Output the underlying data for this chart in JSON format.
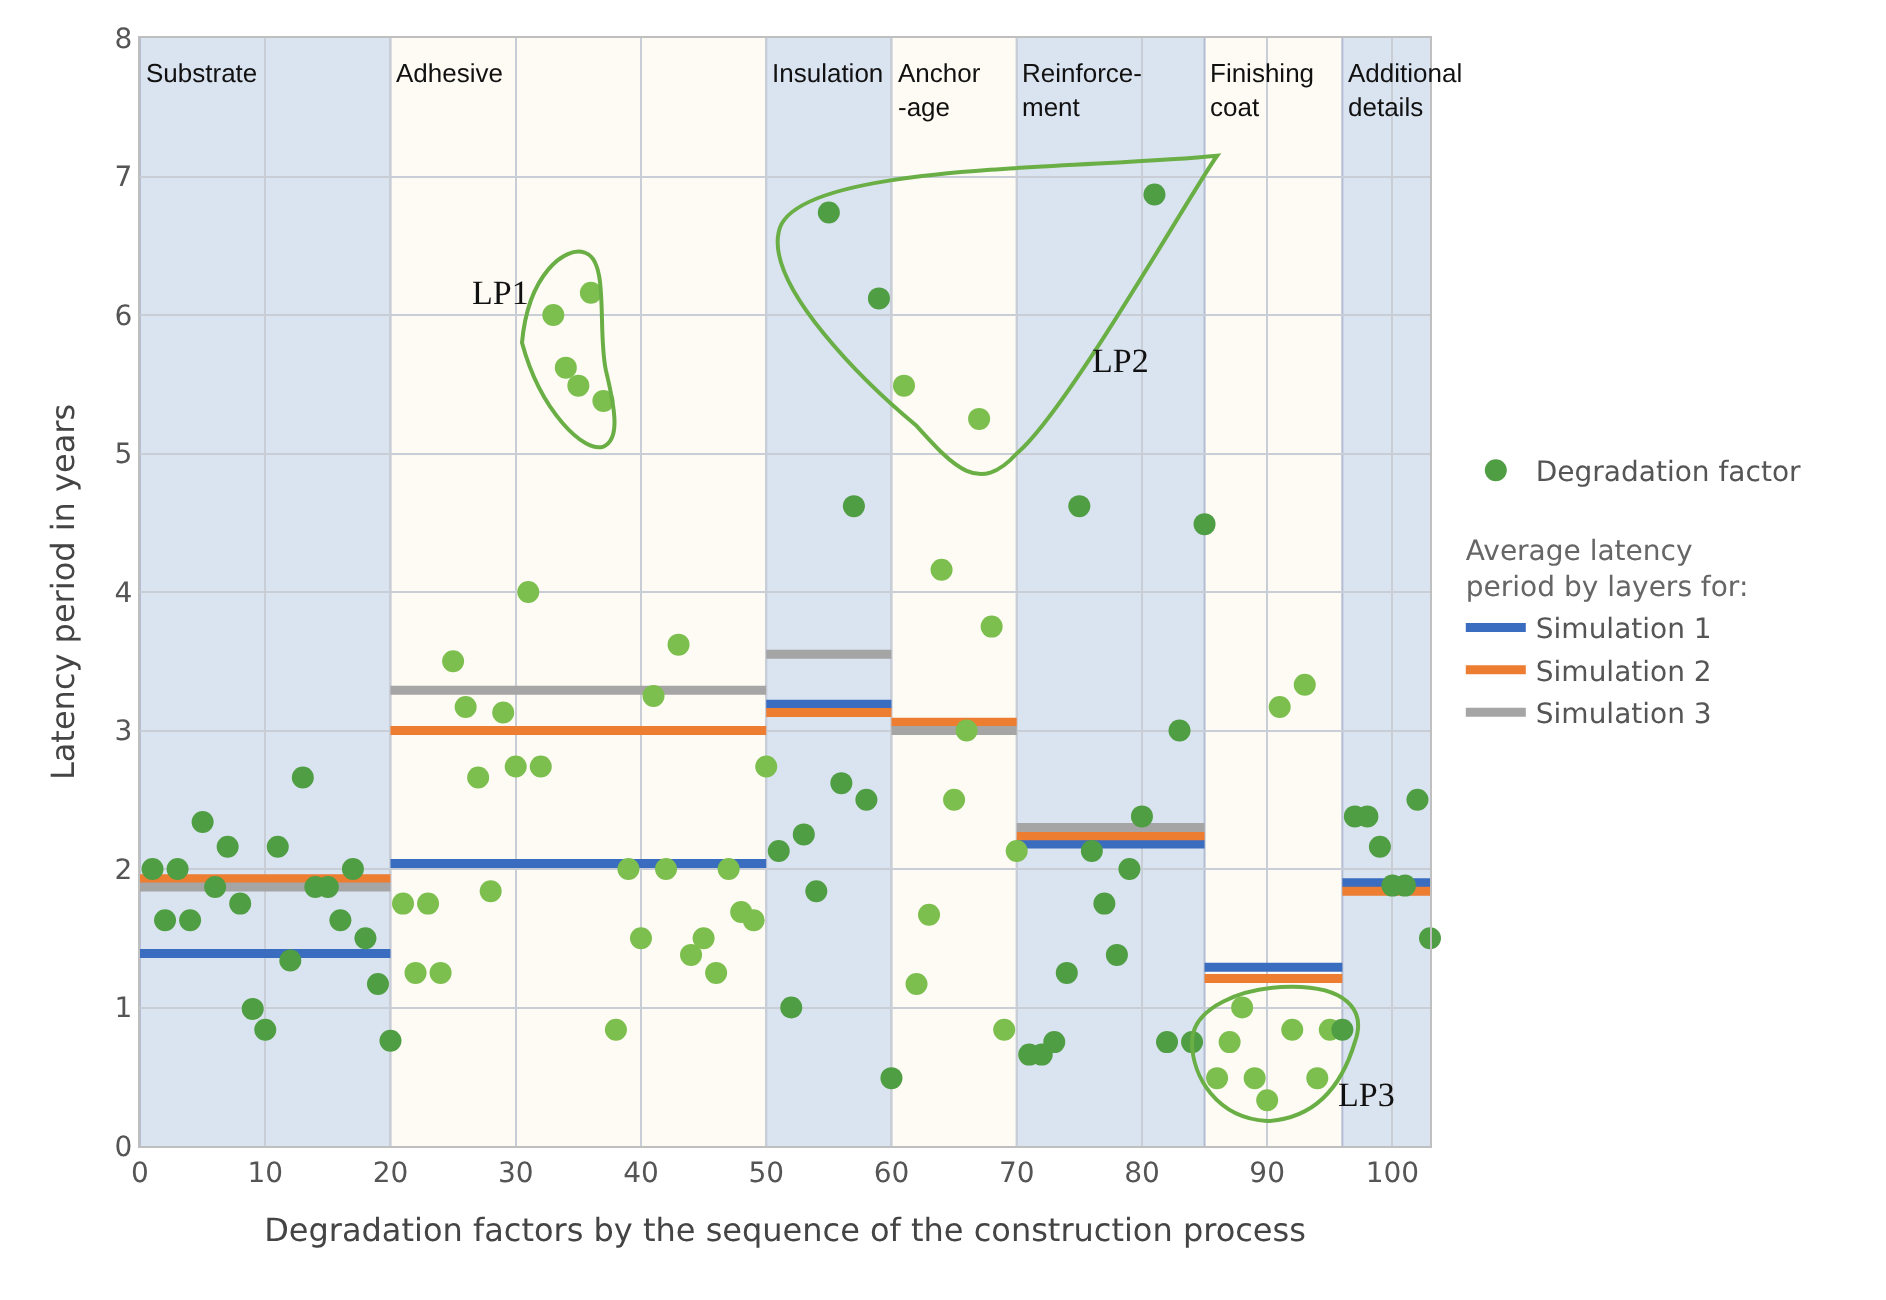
{
  "chart_data": {
    "type": "scatter",
    "xlabel": "Degradation factors by the sequence of the construction process",
    "ylabel": "Latency period in years",
    "xlim": [
      0,
      103
    ],
    "xticks": [
      0,
      10,
      20,
      30,
      40,
      50,
      60,
      70,
      80,
      90,
      100
    ],
    "ylim": [
      0,
      8
    ],
    "yticks": [
      0,
      1,
      2,
      3,
      4,
      5,
      6,
      7,
      8
    ],
    "grid": true,
    "legend": "right",
    "legend_title": "Average latency\nperiod by layers for:",
    "bands": [
      {
        "axis": "x",
        "from": 0,
        "to": 20,
        "label": "Substrate",
        "color": "#dae3f0"
      },
      {
        "axis": "x",
        "from": 20,
        "to": 50,
        "label": "Adhesive",
        "color": "#fdfbf3"
      },
      {
        "axis": "x",
        "from": 50,
        "to": 60,
        "label": "Insulation",
        "color": "#dae3f0"
      },
      {
        "axis": "x",
        "from": 60,
        "to": 70,
        "label": "Anchor\n-age",
        "color": "#fdfbf3"
      },
      {
        "axis": "x",
        "from": 70,
        "to": 85,
        "label": "Reinforce-\nment",
        "color": "#dae3f0"
      },
      {
        "axis": "x",
        "from": 85,
        "to": 96,
        "label": "Finishing\ncoat",
        "color": "#fdfbf3"
      },
      {
        "axis": "x",
        "from": 96,
        "to": 103,
        "label": "Additional\ndetails",
        "color": "#dae3f0"
      }
    ],
    "annotations": [
      "LP1",
      "LP2",
      "LP3"
    ],
    "series": [
      {
        "name": "Degradation factor",
        "marker": "circle",
        "color": "#6aaf45",
        "x": [
          1,
          2,
          3,
          4,
          5,
          6,
          7,
          8,
          9,
          10,
          11,
          12,
          13,
          14,
          15,
          16,
          17,
          18,
          19,
          20,
          21,
          22,
          23,
          24,
          25,
          26,
          27,
          28,
          29,
          30,
          31,
          32,
          33,
          34,
          35,
          36,
          37,
          38,
          39,
          40,
          41,
          42,
          43,
          44,
          45,
          46,
          47,
          48,
          49,
          50,
          51,
          52,
          53,
          54,
          55,
          56,
          57,
          58,
          59,
          60,
          61,
          62,
          63,
          64,
          65,
          66,
          67,
          68,
          69,
          70,
          71,
          72,
          73,
          74,
          75,
          76,
          77,
          78,
          79,
          80,
          81,
          82,
          83,
          84,
          85,
          86,
          87,
          88,
          89,
          90,
          91,
          92,
          93,
          94,
          95,
          96,
          97,
          98,
          99,
          100,
          101,
          102,
          103
        ],
        "values": [
          2.0,
          1.63,
          2.0,
          1.63,
          2.34,
          1.87,
          2.16,
          1.75,
          0.99,
          0.84,
          2.16,
          1.34,
          2.66,
          1.87,
          1.87,
          1.63,
          2.0,
          1.5,
          1.17,
          0.76,
          1.75,
          1.25,
          1.75,
          1.25,
          3.5,
          3.17,
          2.66,
          1.84,
          3.13,
          2.74,
          4.0,
          2.74,
          6.0,
          5.62,
          5.49,
          6.16,
          5.38,
          0.84,
          2.0,
          1.5,
          3.25,
          2.0,
          3.62,
          1.38,
          1.5,
          1.25,
          2.0,
          1.69,
          1.63,
          2.74,
          2.13,
          1.0,
          2.25,
          1.84,
          6.74,
          2.62,
          4.62,
          2.5,
          6.12,
          0.49,
          5.49,
          1.17,
          1.67,
          4.16,
          2.5,
          3.0,
          5.25,
          3.75,
          0.84,
          2.13,
          0.66,
          0.66,
          0.75,
          1.25,
          4.62,
          2.13,
          1.75,
          1.38,
          2.0,
          2.38,
          6.87,
          0.75,
          3.0,
          0.75,
          4.49,
          0.49,
          0.75,
          1.0,
          0.49,
          0.33,
          3.17,
          0.84,
          3.33,
          0.49,
          0.84,
          0.84,
          2.38,
          2.38,
          2.16,
          1.88,
          1.88,
          2.5,
          1.5
        ],
        "colors": [
          "#4f9e43",
          "#4f9e43",
          "#4f9e43",
          "#4f9e43",
          "#4f9e43",
          "#4f9e43",
          "#4f9e43",
          "#4f9e43",
          "#4f9e43",
          "#4f9e43",
          "#4f9e43",
          "#4f9e43",
          "#4f9e43",
          "#4f9e43",
          "#4f9e43",
          "#4f9e43",
          "#4f9e43",
          "#4f9e43",
          "#4f9e43",
          "#4f9e43",
          "#7dbf4e",
          "#7dbf4e",
          "#7dbf4e",
          "#7dbf4e",
          "#7dbf4e",
          "#7dbf4e",
          "#7dbf4e",
          "#7dbf4e",
          "#7dbf4e",
          "#7dbf4e",
          "#7dbf4e",
          "#7dbf4e",
          "#7dbf4e",
          "#7dbf4e",
          "#7dbf4e",
          "#7dbf4e",
          "#7dbf4e",
          "#7dbf4e",
          "#7dbf4e",
          "#7dbf4e",
          "#7dbf4e",
          "#7dbf4e",
          "#7dbf4e",
          "#7dbf4e",
          "#7dbf4e",
          "#7dbf4e",
          "#7dbf4e",
          "#7dbf4e",
          "#7dbf4e",
          "#7dbf4e",
          "#4f9e43",
          "#4f9e43",
          "#4f9e43",
          "#4f9e43",
          "#4f9e43",
          "#4f9e43",
          "#4f9e43",
          "#4f9e43",
          "#4f9e43",
          "#4f9e43",
          "#7dbf4e",
          "#7dbf4e",
          "#7dbf4e",
          "#7dbf4e",
          "#7dbf4e",
          "#7dbf4e",
          "#7dbf4e",
          "#7dbf4e",
          "#7dbf4e",
          "#7dbf4e",
          "#4f9e43",
          "#4f9e43",
          "#4f9e43",
          "#4f9e43",
          "#4f9e43",
          "#4f9e43",
          "#4f9e43",
          "#4f9e43",
          "#4f9e43",
          "#4f9e43",
          "#4f9e43",
          "#4f9e43",
          "#4f9e43",
          "#4f9e43",
          "#4f9e43",
          "#7dbf4e",
          "#7dbf4e",
          "#7dbf4e",
          "#7dbf4e",
          "#7dbf4e",
          "#7dbf4e",
          "#7dbf4e",
          "#7dbf4e",
          "#7dbf4e",
          "#7dbf4e",
          "#4f9e43",
          "#4f9e43",
          "#4f9e43",
          "#4f9e43",
          "#4f9e43",
          "#4f9e43",
          "#4f9e43",
          "#4f9e43"
        ]
      },
      {
        "name": "Simulation 1",
        "type": "line",
        "color": "#3a6cc0",
        "x": [
          0,
          20
        ],
        "values": [
          1.39,
          1.39
        ]
      },
      {
        "type": "line",
        "color": "#3a6cc0",
        "x": [
          20,
          50
        ],
        "values": [
          2.04,
          2.04
        ]
      },
      {
        "type": "line",
        "color": "#3a6cc0",
        "x": [
          50,
          60
        ],
        "values": [
          3.19,
          3.19
        ]
      },
      {
        "type": "line",
        "color": "#3a6cc0",
        "x": [
          70,
          85
        ],
        "values": [
          2.18,
          2.18
        ]
      },
      {
        "type": "line",
        "color": "#3a6cc0",
        "x": [
          85,
          96
        ],
        "values": [
          1.29,
          1.29
        ]
      },
      {
        "type": "line",
        "color": "#3a6cc0",
        "x": [
          96,
          103
        ],
        "values": [
          1.9,
          1.9
        ]
      },
      {
        "name": "Simulation 2",
        "type": "line",
        "color": "#ed7d31",
        "x": [
          0,
          20
        ],
        "values": [
          1.93,
          1.93
        ]
      },
      {
        "type": "line",
        "color": "#ed7d31",
        "x": [
          20,
          50
        ],
        "values": [
          3.0,
          3.0
        ]
      },
      {
        "type": "line",
        "color": "#ed7d31",
        "x": [
          50,
          60
        ],
        "values": [
          3.13,
          3.13
        ]
      },
      {
        "type": "line",
        "color": "#ed7d31",
        "x": [
          60,
          70
        ],
        "values": [
          3.06,
          3.06
        ]
      },
      {
        "type": "line",
        "color": "#ed7d31",
        "x": [
          70,
          85
        ],
        "values": [
          2.24,
          2.24
        ]
      },
      {
        "type": "line",
        "color": "#ed7d31",
        "x": [
          85,
          96
        ],
        "values": [
          1.21,
          1.21
        ]
      },
      {
        "type": "line",
        "color": "#ed7d31",
        "x": [
          96,
          103
        ],
        "values": [
          1.84,
          1.84
        ]
      },
      {
        "name": "Simulation 3",
        "type": "line",
        "color": "#a5a5a5",
        "x": [
          0,
          20
        ],
        "values": [
          1.87,
          1.87
        ]
      },
      {
        "type": "line",
        "color": "#a5a5a5",
        "x": [
          20,
          50
        ],
        "values": [
          3.29,
          3.29
        ]
      },
      {
        "type": "line",
        "color": "#a5a5a5",
        "x": [
          50,
          60
        ],
        "values": [
          3.55,
          3.55
        ]
      },
      {
        "type": "line",
        "color": "#a5a5a5",
        "x": [
          60,
          70
        ],
        "values": [
          3.0,
          3.0
        ]
      },
      {
        "type": "line",
        "color": "#a5a5a5",
        "x": [
          70,
          85
        ],
        "values": [
          2.3,
          2.3
        ]
      }
    ]
  }
}
